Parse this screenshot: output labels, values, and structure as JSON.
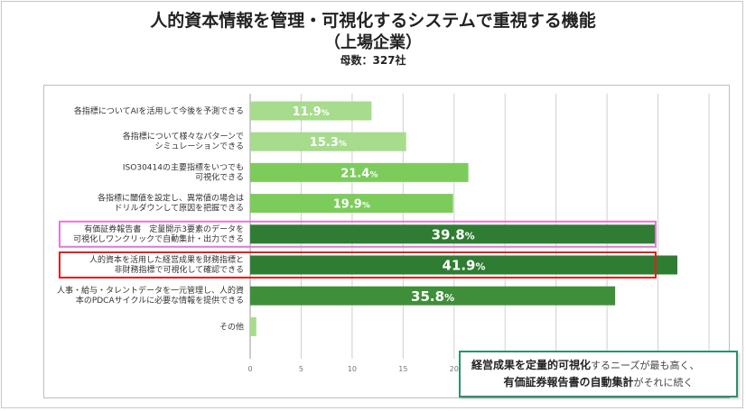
{
  "header": {
    "title": "人的資本情報を管理・可視化するシステムで重視する機能",
    "subtitle": "（上場企業）",
    "base": "母数：327社"
  },
  "chart_data": {
    "type": "bar",
    "orientation": "horizontal",
    "categories": [
      [
        "各指標についてAIを活用して今後を予測できる"
      ],
      [
        "各指標について様々なパターンで",
        "シミュレーションできる"
      ],
      [
        "ISO30414の主要指標をいつでも",
        "可視化できる"
      ],
      [
        "各指標に閾値を設定し、異常値の場合は",
        "ドリルダウンして原因を把握できる"
      ],
      [
        "有価証券報告書　定量開示3要素のデータを",
        "可視化しワンクリックで自動集計・出力できる"
      ],
      [
        "人的資本を活用した経営成果を財務指標と",
        "非財務指標で可視化して確認できる"
      ],
      [
        "人事・給与・タレントデータを一元管理し、人的資",
        "本のPDCAサイクルに必要な情報を提供できる"
      ],
      [
        "その他"
      ]
    ],
    "values": [
      11.9,
      15.3,
      21.4,
      19.9,
      39.8,
      41.9,
      35.8,
      0.6
    ],
    "value_suffix": "%",
    "bar_colors": [
      "#a6dc8c",
      "#a6dc8c",
      "#7ccc5c",
      "#7ccc5c",
      "#2e7d32",
      "#2e7d32",
      "#3f8f3a",
      "#a6dc8c"
    ],
    "highlights": [
      {
        "index": 4,
        "color": "#e07bd6"
      },
      {
        "index": 5,
        "color": "#e02020"
      }
    ],
    "xlim": [
      0,
      45
    ],
    "xticks": [
      0,
      5,
      10,
      15,
      20,
      25,
      30,
      35,
      40,
      45
    ],
    "grid": true
  },
  "callout": {
    "line1_bold": "経営成果を定量的可視化",
    "line1_rest": "するニーズが最も高く、",
    "line2_bold": "有価証券報告書の自動集計",
    "line2_rest": "がそれに続く"
  }
}
